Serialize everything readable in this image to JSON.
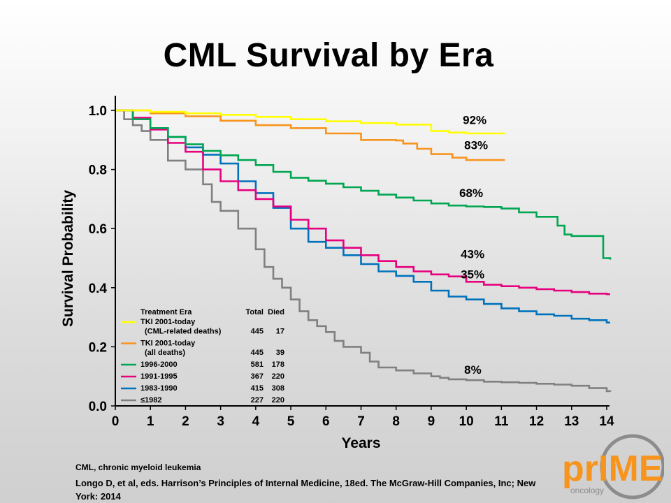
{
  "title": "CML Survival by Era",
  "footnote": "CML, chronic myeloid leukemia",
  "citation": "Longo D, et al, eds. Harrison’s Principles of Internal Medicine, 18ed.  The McGraw-Hill Companies, Inc; New York: 2014",
  "logo": {
    "text_main": "prIME",
    "text_sub": "oncology",
    "colors": {
      "orange": "#f7941d",
      "gray": "#8c8c8c"
    }
  },
  "chart_data": {
    "type": "line",
    "title": "",
    "xlabel": "Years",
    "ylabel": "Survival Probability",
    "xlim": [
      0,
      14
    ],
    "ylim": [
      0,
      1.0
    ],
    "xticks": [
      "0",
      "1",
      "2",
      "3",
      "4",
      "5",
      "6",
      "7",
      "8",
      "9",
      "10",
      "11",
      "12",
      "13",
      "14"
    ],
    "yticks": [
      "0.0",
      "0.2",
      "0.4",
      "0.6",
      "0.8",
      "1.0"
    ],
    "grid": false,
    "step": true,
    "legend": {
      "placement": "bottom-left",
      "header": {
        "era": "Treatment Era",
        "total": "Total",
        "died": "Died"
      },
      "entries": [
        {
          "series": 0,
          "lines": [
            "TKI 2001-today",
            "(CML-related deaths)"
          ],
          "total": "445",
          "died": "17"
        },
        {
          "series": 1,
          "lines": [
            "TKI 2001-today",
            "(all deaths)"
          ],
          "total": "445",
          "died": "39"
        },
        {
          "series": 2,
          "lines": [
            "1996-2000"
          ],
          "total": "581",
          "died": "178"
        },
        {
          "series": 3,
          "lines": [
            "1991-1995"
          ],
          "total": "367",
          "died": "220"
        },
        {
          "series": 4,
          "lines": [
            "1983-1990"
          ],
          "total": "415",
          "died": "308"
        },
        {
          "series": 5,
          "lines": [
            "≤1982"
          ],
          "total": "227",
          "died": "220"
        }
      ]
    },
    "series": [
      {
        "color": "#ffff00",
        "end_label": "92%",
        "x": [
          0,
          1,
          2,
          3,
          4,
          5,
          6,
          7,
          8,
          9,
          9.5,
          10,
          11.1
        ],
        "y": [
          1.0,
          0.995,
          0.99,
          0.985,
          0.978,
          0.97,
          0.963,
          0.957,
          0.952,
          0.93,
          0.925,
          0.922,
          0.922
        ]
      },
      {
        "color": "#f7941d",
        "end_label": "83%",
        "x": [
          0,
          1,
          2,
          3,
          4,
          5,
          6,
          7,
          8,
          8.2,
          8.6,
          9,
          9.6,
          10,
          11.1
        ],
        "y": [
          1.0,
          0.99,
          0.98,
          0.965,
          0.95,
          0.94,
          0.922,
          0.9,
          0.898,
          0.888,
          0.87,
          0.852,
          0.84,
          0.832,
          0.832
        ]
      },
      {
        "color": "#00a651",
        "end_label": "68%",
        "x": [
          0,
          0.5,
          1,
          1.5,
          2,
          2.5,
          3,
          3.5,
          4,
          4.5,
          5,
          5.5,
          6,
          6.5,
          7,
          7.5,
          8,
          8.5,
          9,
          9.5,
          10,
          10.5,
          11,
          11.5,
          12,
          12.5,
          12.6,
          12.8,
          13,
          13.5,
          13.9,
          14.1
        ],
        "y": [
          1.0,
          0.97,
          0.94,
          0.91,
          0.885,
          0.863,
          0.848,
          0.832,
          0.815,
          0.792,
          0.772,
          0.762,
          0.752,
          0.74,
          0.728,
          0.715,
          0.705,
          0.695,
          0.685,
          0.678,
          0.675,
          0.673,
          0.668,
          0.655,
          0.64,
          0.64,
          0.61,
          0.58,
          0.575,
          0.575,
          0.5,
          0.495
        ]
      },
      {
        "color": "#e6007e",
        "end_label": "43%",
        "x": [
          0,
          0.5,
          1,
          1.5,
          2,
          2.5,
          3,
          3.5,
          4,
          4.5,
          5,
          5.5,
          6,
          6.5,
          7,
          7.5,
          8,
          8.5,
          9,
          9.5,
          10,
          10.5,
          11,
          11.5,
          12,
          12.5,
          13,
          13.5,
          14,
          14.1
        ],
        "y": [
          1.0,
          0.975,
          0.935,
          0.89,
          0.86,
          0.8,
          0.76,
          0.73,
          0.7,
          0.675,
          0.63,
          0.6,
          0.56,
          0.535,
          0.51,
          0.49,
          0.47,
          0.455,
          0.445,
          0.438,
          0.42,
          0.41,
          0.405,
          0.4,
          0.395,
          0.39,
          0.385,
          0.38,
          0.378,
          0.378
        ]
      },
      {
        "color": "#0072bc",
        "end_label": "35%",
        "x": [
          0,
          0.5,
          1,
          1.5,
          2,
          2.5,
          3,
          3.5,
          4,
          4.5,
          5,
          5.5,
          6,
          6.5,
          7,
          7.5,
          8,
          8.5,
          9,
          9.5,
          10,
          10.5,
          11,
          11.5,
          12,
          12.5,
          13,
          13.5,
          14,
          14.1
        ],
        "y": [
          1.0,
          0.97,
          0.94,
          0.91,
          0.875,
          0.85,
          0.82,
          0.76,
          0.72,
          0.67,
          0.6,
          0.555,
          0.535,
          0.51,
          0.48,
          0.455,
          0.44,
          0.42,
          0.39,
          0.37,
          0.36,
          0.345,
          0.33,
          0.32,
          0.31,
          0.305,
          0.295,
          0.29,
          0.282,
          0.282
        ]
      },
      {
        "color": "#808080",
        "end_label": "8%",
        "x": [
          0,
          0.25,
          0.5,
          0.75,
          1,
          1.5,
          2,
          2.5,
          2.75,
          3,
          3.5,
          4,
          4.25,
          4.5,
          4.75,
          5,
          5.25,
          5.5,
          5.75,
          6,
          6.25,
          6.5,
          7,
          7.25,
          7.5,
          8,
          8.5,
          9,
          9.25,
          9.5,
          10,
          10.5,
          11,
          11.5,
          12,
          12.5,
          13,
          13.5,
          14,
          14.1
        ],
        "y": [
          1.0,
          0.97,
          0.95,
          0.93,
          0.9,
          0.83,
          0.8,
          0.75,
          0.69,
          0.66,
          0.6,
          0.53,
          0.47,
          0.43,
          0.4,
          0.36,
          0.32,
          0.29,
          0.27,
          0.25,
          0.22,
          0.2,
          0.18,
          0.15,
          0.13,
          0.12,
          0.11,
          0.1,
          0.095,
          0.09,
          0.087,
          0.082,
          0.08,
          0.078,
          0.075,
          0.072,
          0.068,
          0.06,
          0.05,
          0.048
        ]
      }
    ]
  }
}
